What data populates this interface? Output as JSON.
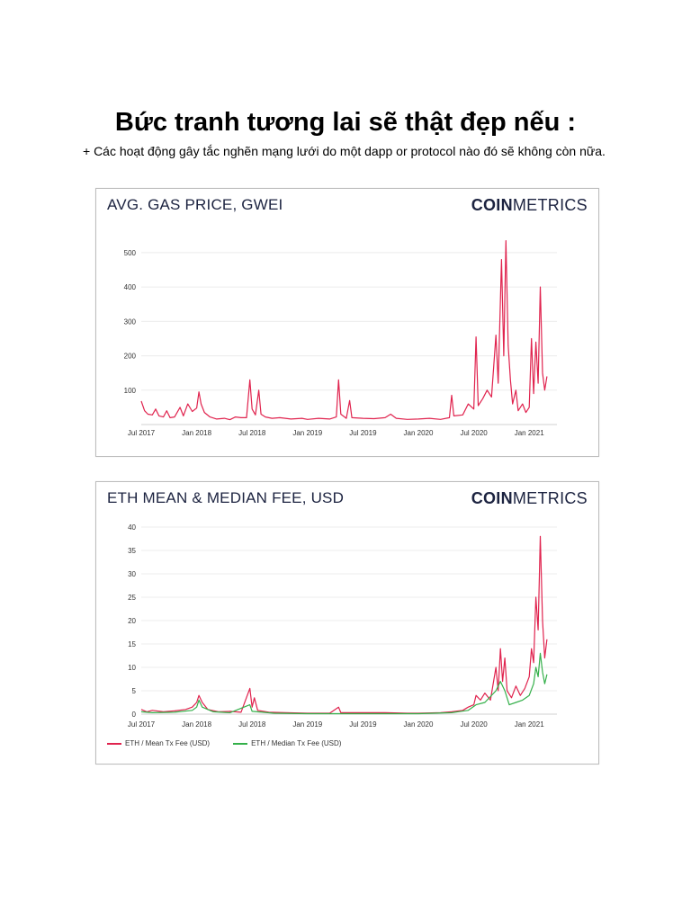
{
  "page": {
    "title": "Bức tranh tương lai sẽ thật đẹp nếu :",
    "bullet": "+ Các hoạt động gây tắc nghẽn mạng lưới do một dapp or protocol nào đó sẽ không còn nữa."
  },
  "colors": {
    "mean": "#e0234e",
    "median": "#34b04a",
    "brand": "#1c2340"
  },
  "chart_data": [
    {
      "type": "line",
      "title": "AVG. GAS PRICE, GWEI",
      "brand": {
        "bold": "COIN",
        "light": "METRICS"
      },
      "x_ticks": [
        "Jul 2017",
        "Jan 2018",
        "Jul 2018",
        "Jan 2019",
        "Jul 2019",
        "Jan 2020",
        "Jul 2020",
        "Jan 2021"
      ],
      "y_ticks": [
        100,
        200,
        300,
        400,
        500
      ],
      "ylim": [
        0,
        560
      ],
      "x_range": [
        2017.5,
        2021.25
      ],
      "grid": true,
      "series": [
        {
          "color": "#e0234e",
          "points": [
            [
              2017.5,
              68
            ],
            [
              2017.53,
              40
            ],
            [
              2017.56,
              30
            ],
            [
              2017.6,
              28
            ],
            [
              2017.63,
              45
            ],
            [
              2017.66,
              25
            ],
            [
              2017.7,
              22
            ],
            [
              2017.73,
              40
            ],
            [
              2017.76,
              20
            ],
            [
              2017.8,
              22
            ],
            [
              2017.85,
              50
            ],
            [
              2017.88,
              25
            ],
            [
              2017.92,
              60
            ],
            [
              2017.96,
              38
            ],
            [
              2018.0,
              48
            ],
            [
              2018.02,
              95
            ],
            [
              2018.04,
              60
            ],
            [
              2018.07,
              35
            ],
            [
              2018.12,
              22
            ],
            [
              2018.18,
              16
            ],
            [
              2018.25,
              18
            ],
            [
              2018.3,
              14
            ],
            [
              2018.35,
              22
            ],
            [
              2018.4,
              20
            ],
            [
              2018.45,
              20
            ],
            [
              2018.48,
              130
            ],
            [
              2018.5,
              45
            ],
            [
              2018.53,
              28
            ],
            [
              2018.56,
              100
            ],
            [
              2018.58,
              30
            ],
            [
              2018.62,
              22
            ],
            [
              2018.68,
              18
            ],
            [
              2018.75,
              20
            ],
            [
              2018.85,
              16
            ],
            [
              2018.95,
              18
            ],
            [
              2019.0,
              15
            ],
            [
              2019.1,
              18
            ],
            [
              2019.2,
              16
            ],
            [
              2019.26,
              22
            ],
            [
              2019.28,
              130
            ],
            [
              2019.3,
              30
            ],
            [
              2019.35,
              18
            ],
            [
              2019.38,
              70
            ],
            [
              2019.4,
              20
            ],
            [
              2019.5,
              18
            ],
            [
              2019.6,
              17
            ],
            [
              2019.7,
              20
            ],
            [
              2019.75,
              30
            ],
            [
              2019.8,
              18
            ],
            [
              2019.9,
              15
            ],
            [
              2020.0,
              16
            ],
            [
              2020.1,
              18
            ],
            [
              2020.2,
              15
            ],
            [
              2020.28,
              20
            ],
            [
              2020.3,
              85
            ],
            [
              2020.32,
              25
            ],
            [
              2020.4,
              28
            ],
            [
              2020.45,
              60
            ],
            [
              2020.5,
              45
            ],
            [
              2020.52,
              255
            ],
            [
              2020.54,
              55
            ],
            [
              2020.58,
              75
            ],
            [
              2020.62,
              100
            ],
            [
              2020.66,
              80
            ],
            [
              2020.7,
              260
            ],
            [
              2020.72,
              120
            ],
            [
              2020.75,
              480
            ],
            [
              2020.77,
              200
            ],
            [
              2020.79,
              535
            ],
            [
              2020.81,
              230
            ],
            [
              2020.83,
              130
            ],
            [
              2020.85,
              60
            ],
            [
              2020.88,
              100
            ],
            [
              2020.9,
              40
            ],
            [
              2020.94,
              60
            ],
            [
              2020.97,
              35
            ],
            [
              2021.0,
              50
            ],
            [
              2021.02,
              250
            ],
            [
              2021.04,
              90
            ],
            [
              2021.06,
              240
            ],
            [
              2021.08,
              120
            ],
            [
              2021.1,
              400
            ],
            [
              2021.12,
              150
            ],
            [
              2021.14,
              100
            ],
            [
              2021.16,
              140
            ]
          ]
        }
      ]
    },
    {
      "type": "line",
      "title": "ETH MEAN & MEDIAN FEE, USD",
      "brand": {
        "bold": "COIN",
        "light": "METRICS"
      },
      "x_ticks": [
        "Jul 2017",
        "Jan 2018",
        "Jul 2018",
        "Jan 2019",
        "Jul 2019",
        "Jan 2020",
        "Jul 2020",
        "Jan 2021"
      ],
      "y_ticks": [
        0,
        5,
        10,
        15,
        20,
        25,
        30,
        35,
        40
      ],
      "ylim": [
        0,
        40
      ],
      "x_range": [
        2017.5,
        2021.25
      ],
      "grid": true,
      "legend": [
        {
          "label": "ETH / Mean Tx Fee (USD)",
          "color": "#e0234e"
        },
        {
          "label": "ETH / Median Tx Fee (USD)",
          "color": "#34b04a"
        }
      ],
      "series": [
        {
          "name": "ETH / Mean Tx Fee (USD)",
          "color": "#e0234e",
          "points": [
            [
              2017.5,
              1.0
            ],
            [
              2017.55,
              0.5
            ],
            [
              2017.6,
              0.8
            ],
            [
              2017.7,
              0.5
            ],
            [
              2017.8,
              0.7
            ],
            [
              2017.9,
              1.0
            ],
            [
              2017.96,
              1.5
            ],
            [
              2018.0,
              2.5
            ],
            [
              2018.02,
              4.0
            ],
            [
              2018.05,
              2.5
            ],
            [
              2018.1,
              1.0
            ],
            [
              2018.2,
              0.5
            ],
            [
              2018.3,
              0.6
            ],
            [
              2018.4,
              0.4
            ],
            [
              2018.48,
              5.5
            ],
            [
              2018.5,
              1.5
            ],
            [
              2018.52,
              3.5
            ],
            [
              2018.55,
              0.8
            ],
            [
              2018.65,
              0.4
            ],
            [
              2018.8,
              0.3
            ],
            [
              2019.0,
              0.2
            ],
            [
              2019.2,
              0.2
            ],
            [
              2019.28,
              1.5
            ],
            [
              2019.3,
              0.3
            ],
            [
              2019.5,
              0.3
            ],
            [
              2019.7,
              0.3
            ],
            [
              2019.9,
              0.2
            ],
            [
              2020.0,
              0.2
            ],
            [
              2020.2,
              0.3
            ],
            [
              2020.3,
              0.5
            ],
            [
              2020.4,
              0.8
            ],
            [
              2020.45,
              1.5
            ],
            [
              2020.5,
              2.0
            ],
            [
              2020.52,
              4.0
            ],
            [
              2020.56,
              3.0
            ],
            [
              2020.6,
              4.5
            ],
            [
              2020.65,
              3.0
            ],
            [
              2020.7,
              10.0
            ],
            [
              2020.72,
              5.0
            ],
            [
              2020.74,
              14.0
            ],
            [
              2020.76,
              7.0
            ],
            [
              2020.78,
              12.0
            ],
            [
              2020.8,
              5.0
            ],
            [
              2020.84,
              3.5
            ],
            [
              2020.88,
              6.0
            ],
            [
              2020.92,
              4.0
            ],
            [
              2020.96,
              5.5
            ],
            [
              2021.0,
              8.0
            ],
            [
              2021.02,
              14.0
            ],
            [
              2021.04,
              11.0
            ],
            [
              2021.06,
              25.0
            ],
            [
              2021.08,
              18.0
            ],
            [
              2021.1,
              38.0
            ],
            [
              2021.12,
              20.0
            ],
            [
              2021.14,
              12.0
            ],
            [
              2021.16,
              16.0
            ]
          ]
        },
        {
          "name": "ETH / Median Tx Fee (USD)",
          "color": "#34b04a",
          "points": [
            [
              2017.5,
              0.5
            ],
            [
              2017.6,
              0.3
            ],
            [
              2017.8,
              0.4
            ],
            [
              2017.96,
              0.8
            ],
            [
              2018.0,
              1.5
            ],
            [
              2018.02,
              3.0
            ],
            [
              2018.05,
              1.5
            ],
            [
              2018.15,
              0.5
            ],
            [
              2018.3,
              0.3
            ],
            [
              2018.48,
              2.0
            ],
            [
              2018.5,
              0.6
            ],
            [
              2018.7,
              0.2
            ],
            [
              2019.0,
              0.1
            ],
            [
              2019.5,
              0.1
            ],
            [
              2020.0,
              0.1
            ],
            [
              2020.3,
              0.3
            ],
            [
              2020.45,
              0.8
            ],
            [
              2020.52,
              2.0
            ],
            [
              2020.6,
              2.5
            ],
            [
              2020.7,
              5.0
            ],
            [
              2020.74,
              7.0
            ],
            [
              2020.78,
              5.0
            ],
            [
              2020.82,
              2.0
            ],
            [
              2020.88,
              2.5
            ],
            [
              2020.94,
              3.0
            ],
            [
              2021.0,
              4.0
            ],
            [
              2021.04,
              6.5
            ],
            [
              2021.06,
              10.0
            ],
            [
              2021.08,
              8.0
            ],
            [
              2021.1,
              13.0
            ],
            [
              2021.12,
              9.0
            ],
            [
              2021.14,
              6.5
            ],
            [
              2021.16,
              8.5
            ]
          ]
        }
      ]
    }
  ]
}
